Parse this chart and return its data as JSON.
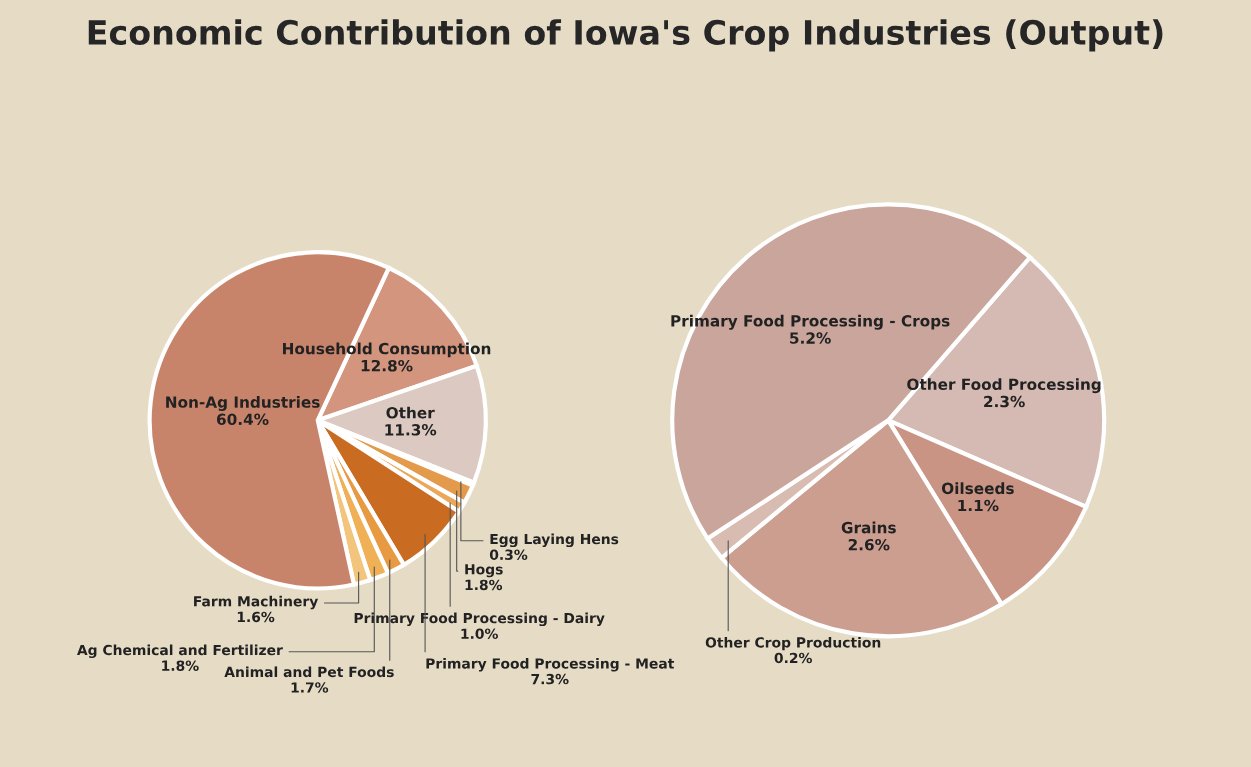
{
  "chart_data": [
    {
      "type": "pie",
      "title": "Economic Contribution of Iowa's Crop Industries (Output)",
      "categories": [
        "Household Consumption",
        "Other",
        "Egg Laying Hens",
        "Hogs",
        "Primary Food Processing - Dairy",
        "Primary Food Processing - Meat",
        "Animal and Pet Foods",
        "Ag Chemical and Fertilizer",
        "Farm Machinery",
        "Non-Ag Industries"
      ],
      "values": [
        12.8,
        11.3,
        0.3,
        1.8,
        1.0,
        7.3,
        1.7,
        1.8,
        1.6,
        60.4
      ],
      "value_labels": [
        "12.8%",
        "11.3%",
        "0.3%",
        "1.8%",
        "1.0%",
        "7.3%",
        "1.7%",
        "1.8%",
        "1.6%",
        "60.4%"
      ],
      "colors": [
        "#d4957e",
        "#dccac2",
        "#d98a3c",
        "#e39a4a",
        "#eba85a",
        "#c96c22",
        "#e89a42",
        "#efb056",
        "#f3c47c",
        "#c8846a"
      ]
    },
    {
      "type": "pie",
      "categories": [
        "Other Food Processing",
        "Oilseeds",
        "Grains",
        "Other Crop Production",
        "Primary Food Processing - Crops"
      ],
      "values": [
        2.3,
        1.1,
        2.6,
        0.2,
        5.2
      ],
      "value_labels": [
        "2.3%",
        "1.1%",
        "2.6%",
        "0.2%",
        "5.2%"
      ],
      "colors": [
        "#d4bab2",
        "#c99484",
        "#cc9e90",
        "#d8bcb2",
        "#c9a59b"
      ]
    }
  ]
}
